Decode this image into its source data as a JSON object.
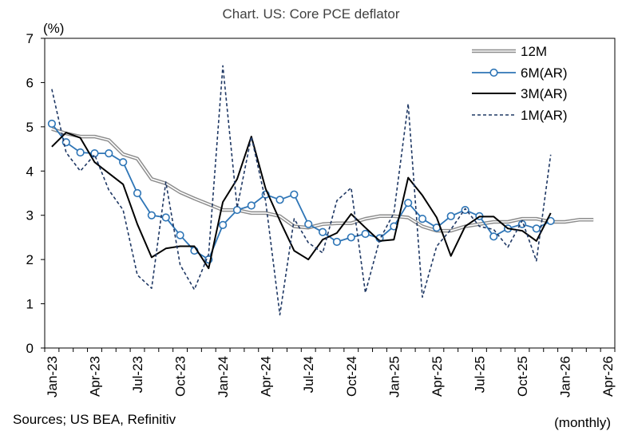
{
  "chart_data": {
    "type": "line",
    "title": "Chart. US: Core PCE deflator",
    "ylabel": "(%)",
    "xlabel": "(monthly)",
    "source": "Sources; US BEA, Refinitiv",
    "ylim": [
      0,
      7
    ],
    "yticks": [
      "0",
      "1",
      "2",
      "3",
      "4",
      "5",
      "6",
      "7"
    ],
    "xticks": [
      "Jan-23",
      "Apr-23",
      "Jul-23",
      "Oct-23",
      "Jan-24",
      "Apr-24",
      "Jul-24",
      "Oct-24",
      "Jan-25",
      "Apr-25",
      "Jul-25",
      "Oct-25",
      "Jan-26",
      "Apr-26"
    ],
    "x_months": 40,
    "grid": false,
    "legend": "top-right",
    "series": [
      {
        "name": "12M",
        "style": "double-gray",
        "values": [
          4.95,
          4.85,
          4.78,
          4.78,
          4.7,
          4.38,
          4.28,
          3.82,
          3.72,
          3.52,
          3.38,
          3.25,
          3.12,
          3.12,
          3.05,
          3.05,
          2.98,
          2.75,
          2.72,
          2.8,
          2.82,
          2.82,
          2.92,
          2.98,
          2.98,
          2.95,
          2.75,
          2.65,
          2.65,
          2.75,
          2.8,
          2.85,
          2.85,
          2.92,
          2.92,
          2.85,
          2.85,
          2.9,
          2.9
        ]
      },
      {
        "name": "6M(AR)",
        "style": "blue-circle",
        "values": [
          5.07,
          4.65,
          4.42,
          4.4,
          4.4,
          4.2,
          3.5,
          3.0,
          2.95,
          2.55,
          2.2,
          2.0,
          2.78,
          3.12,
          3.22,
          3.47,
          3.35,
          3.47,
          2.8,
          2.62,
          2.4,
          2.5,
          2.58,
          2.48,
          2.75,
          3.28,
          2.92,
          2.72,
          2.98,
          3.12,
          2.98,
          2.52,
          2.7,
          2.8,
          2.7,
          2.87
        ]
      },
      {
        "name": "3M(AR)",
        "style": "black",
        "values": [
          4.55,
          4.87,
          4.75,
          4.2,
          3.95,
          3.7,
          2.8,
          2.05,
          2.25,
          2.3,
          2.3,
          1.8,
          3.3,
          3.82,
          4.78,
          3.6,
          2.88,
          2.2,
          2.0,
          2.45,
          2.6,
          3.03,
          2.72,
          2.42,
          2.45,
          3.85,
          3.45,
          2.95,
          2.08,
          2.75,
          2.97,
          2.97,
          2.7,
          2.65,
          2.42,
          3.05
        ]
      },
      {
        "name": "1M(AR)",
        "style": "dashed-navy",
        "values": [
          5.85,
          4.42,
          4.0,
          4.37,
          3.57,
          3.12,
          1.65,
          1.35,
          3.75,
          1.88,
          1.32,
          2.12,
          6.38,
          3.17,
          4.78,
          3.32,
          0.75,
          2.92,
          2.38,
          2.15,
          3.33,
          3.62,
          1.25,
          2.45,
          3.05,
          5.52,
          1.15,
          2.3,
          2.68,
          3.15,
          2.75,
          2.68,
          2.28,
          2.88,
          1.97,
          4.37
        ]
      }
    ]
  }
}
